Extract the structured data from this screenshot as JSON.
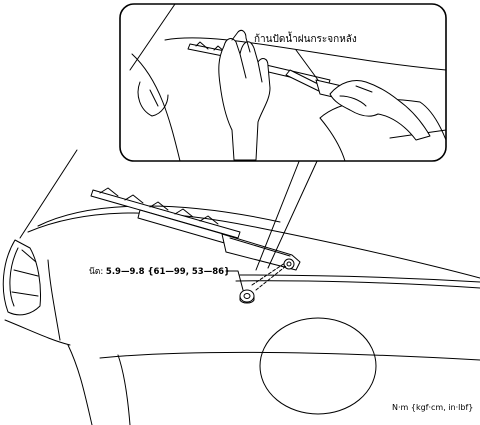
{
  "figure": {
    "callout_label": "ก้านปัดน้ำฝนกระจกหลัง",
    "torque_prefix": "น๊ต:",
    "torque_value": "5.9—9.8 {61—99, 53—86}",
    "units": "N·m {kgf·cm, in·lbf}"
  }
}
